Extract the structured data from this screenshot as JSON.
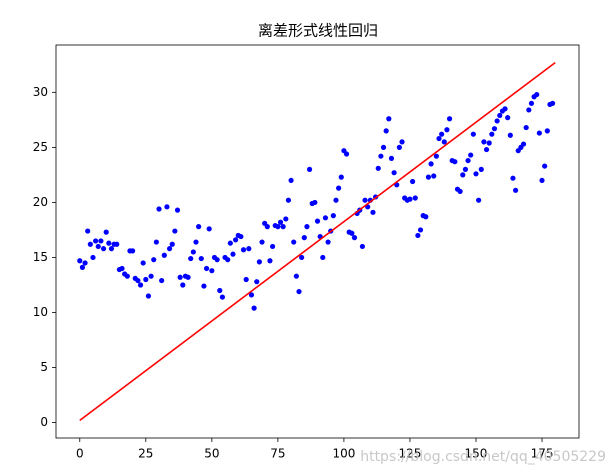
{
  "chart_data": {
    "type": "scatter",
    "title": "离差形式线性回归",
    "xlim": [
      -9,
      189
    ],
    "ylim": [
      -1.4,
      34.3
    ],
    "xticks": [
      0,
      25,
      50,
      75,
      100,
      125,
      150,
      175
    ],
    "yticks": [
      0,
      5,
      10,
      15,
      20,
      25,
      30
    ],
    "grid": false,
    "watermark": "https://blog.csdn.net/qq_40505229",
    "series": [
      {
        "type": "scatter",
        "color": "#0000ff",
        "x": [
          0,
          1,
          2,
          3,
          4,
          5,
          6,
          7,
          8,
          9,
          10,
          11,
          12,
          13,
          14,
          15,
          16,
          17,
          18,
          19,
          20,
          21,
          22,
          23,
          24,
          25,
          26,
          27,
          28,
          29,
          30,
          31,
          32,
          33,
          34,
          35,
          36,
          37,
          38,
          39,
          40,
          41,
          42,
          43,
          44,
          45,
          46,
          47,
          48,
          49,
          50,
          51,
          52,
          53,
          54,
          55,
          56,
          57,
          58,
          59,
          60,
          61,
          62,
          63,
          64,
          65,
          66,
          67,
          68,
          69,
          70,
          71,
          72,
          73,
          74,
          75,
          76,
          77,
          78,
          79,
          80,
          81,
          82,
          83,
          84,
          85,
          86,
          87,
          88,
          89,
          90,
          91,
          92,
          93,
          94,
          95,
          96,
          97,
          98,
          99,
          100,
          101,
          102,
          103,
          104,
          105,
          106,
          107,
          108,
          109,
          110,
          111,
          112,
          113,
          114,
          115,
          116,
          117,
          118,
          119,
          120,
          121,
          122,
          123,
          124,
          125,
          126,
          127,
          128,
          129,
          130,
          131,
          132,
          133,
          134,
          135,
          136,
          137,
          138,
          139,
          140,
          141,
          142,
          143,
          144,
          145,
          146,
          147,
          148,
          149,
          150,
          151,
          152,
          153,
          154,
          155,
          156,
          157,
          158,
          159,
          160,
          161,
          162,
          163,
          164,
          165,
          166,
          167,
          168,
          169,
          170,
          171,
          172,
          173,
          174,
          175,
          176,
          177,
          178,
          179
        ],
        "values": [
          14.7,
          14.1,
          14.5,
          17.4,
          16.2,
          15,
          16.5,
          16,
          16.5,
          15.8,
          17.3,
          16.3,
          15.8,
          16.2,
          16.2,
          13.9,
          14,
          13.5,
          13.3,
          15.6,
          15.6,
          13.1,
          12.9,
          12.5,
          14.5,
          13,
          11.5,
          13.3,
          14.8,
          16.4,
          19.4,
          12.9,
          15.2,
          19.6,
          15.8,
          16.2,
          17.4,
          19.3,
          13.2,
          12.5,
          13.3,
          13.2,
          14.9,
          15.5,
          16.4,
          17.8,
          14.9,
          12.4,
          14,
          17.6,
          13.8,
          15,
          14.8,
          12,
          11.4,
          15,
          14.8,
          16.3,
          15.3,
          16.6,
          17,
          16.9,
          15.7,
          13,
          15.8,
          11.6,
          10.4,
          12.8,
          14.6,
          16.4,
          18.1,
          17.8,
          14.7,
          16,
          17.9,
          17.8,
          18.2,
          17.8,
          18.5,
          20.2,
          22,
          16.4,
          13.3,
          11.9,
          15,
          16.8,
          17.8,
          23,
          19.9,
          20,
          18.3,
          16.9,
          15,
          18.6,
          16.4,
          17.4,
          18.8,
          20.2,
          21.3,
          22.3,
          24.7,
          24.4,
          17.3,
          17.2,
          16.8,
          19,
          19.3,
          16,
          20.2,
          19.6,
          20.2,
          19.1,
          20.5,
          23.1,
          24.2,
          25,
          26.5,
          27.6,
          24,
          22.7,
          21.6,
          25,
          25.5,
          20.4,
          20.2,
          20.3,
          21.9,
          20.4,
          17,
          17.5,
          18.8,
          18.7,
          22.3,
          23.5,
          22.4,
          24.2,
          25.8,
          26.2,
          25.5,
          26.6,
          27.6,
          23.8,
          23.7,
          21.2,
          21,
          22.5,
          23,
          23.8,
          24.3,
          26.2,
          22.6,
          20.2,
          23,
          25.5,
          24.8,
          25.4,
          26.2,
          26.7,
          27.4,
          27.9,
          28.3,
          28.5,
          27.7,
          26.1,
          22.2,
          21.1,
          24.7,
          25,
          25.3,
          26.8,
          28.4,
          29,
          29.6,
          29.8,
          26.3,
          22,
          23.3,
          26.5,
          28.9,
          29
        ]
      },
      {
        "type": "line",
        "color": "#ff0000",
        "x": [
          0,
          180
        ],
        "values": [
          0.2,
          32.7
        ]
      }
    ]
  }
}
